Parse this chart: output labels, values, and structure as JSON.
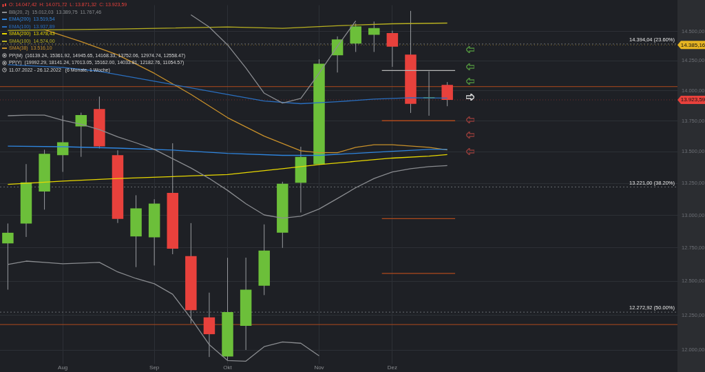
{
  "chart_data": {
    "type": "candlestick",
    "x": [
      "2022-07-11",
      "2022-07-18",
      "2022-07-25",
      "2022-08-01",
      "2022-08-08",
      "2022-08-15",
      "2022-08-22",
      "2022-08-29",
      "2022-09-05",
      "2022-09-12",
      "2022-09-19",
      "2022-09-26",
      "2022-10-03",
      "2022-10-10",
      "2022-10-17",
      "2022-10-24",
      "2022-10-31",
      "2022-11-07",
      "2022-11-14",
      "2022-11-21",
      "2022-11-28",
      "2022-12-05",
      "2022-12-12",
      "2022-12-19",
      "2022-12-26"
    ],
    "ohlc": [
      [
        12785,
        12937,
        12438,
        12866
      ],
      [
        12937,
        13402,
        12834,
        13257
      ],
      [
        13185,
        13517,
        13044,
        13485
      ],
      [
        13473,
        13795,
        13340,
        13577
      ],
      [
        13706,
        13818,
        13460,
        13798
      ],
      [
        13848,
        13951,
        13527,
        13544
      ],
      [
        13473,
        13512,
        12941,
        12973
      ],
      [
        12838,
        13156,
        12606,
        13054
      ],
      [
        12831,
        13125,
        12618,
        13091
      ],
      [
        13175,
        13569,
        12703,
        12745
      ],
      [
        12689,
        12940,
        12190,
        12287
      ],
      [
        12235,
        12416,
        11950,
        12113
      ],
      [
        11953,
        12676,
        11930,
        12274
      ],
      [
        12173,
        12677,
        12000,
        12438
      ],
      [
        12467,
        12930,
        12398,
        12731
      ],
      [
        12866,
        13262,
        12751,
        13246
      ],
      [
        13254,
        13541,
        13022,
        13460
      ],
      [
        13400,
        14264,
        13397,
        14226
      ],
      [
        14297,
        14459,
        14152,
        14433
      ],
      [
        14398,
        14571,
        14326,
        14545
      ],
      [
        14473,
        14587,
        14326,
        14531
      ],
      [
        14488,
        14508,
        14200,
        14371
      ],
      [
        14303,
        14680,
        13816,
        13891
      ],
      [
        13937,
        14162,
        13793,
        13945
      ],
      [
        14047.42,
        14071.72,
        13871.32,
        13923.59
      ]
    ],
    "colors": [
      "#6cbf3a",
      "#6cbf3a",
      "#6cbf3a",
      "#6cbf3a",
      "#6cbf3a",
      "#e8413c",
      "#e8413c",
      "#6cbf3a",
      "#6cbf3a",
      "#e8413c",
      "#e8413c",
      "#e8413c",
      "#6cbf3a",
      "#6cbf3a",
      "#6cbf3a",
      "#6cbf3a",
      "#6cbf3a",
      "#6cbf3a",
      "#6cbf3a",
      "#6cbf3a",
      "#6cbf3a",
      "#e8413c",
      "#e8413c",
      "#6cbf3a",
      "#e8413c"
    ],
    "series": [
      {
        "name": "BB(20, 2)  15.012,03  13.389,75  11.767,46",
        "type": "line",
        "color": "#8a8c90",
        "values": [
          null,
          null,
          null,
          null,
          null,
          null,
          null,
          null,
          null,
          null,
          14646,
          14540,
          14386,
          14190,
          13979,
          13897,
          13935,
          14145,
          14375,
          14592,
          null,
          null,
          null,
          null,
          null
        ]
      },
      {
        "type": "line",
        "color": "#8a8c90",
        "values": [
          13793,
          13798,
          13798,
          13755,
          13723,
          13680,
          13621,
          13573,
          13520,
          13445,
          13371,
          13288,
          13194,
          13090,
          13003,
          12978,
          12993,
          13049,
          13131,
          13215,
          13288,
          13340,
          13366,
          13382,
          13390
        ]
      },
      {
        "type": "line",
        "color": "#8a8c90",
        "values": [
          12626,
          12651,
          12641,
          12631,
          12636,
          12641,
          12570,
          12521,
          12482,
          12404,
          12228,
          12038,
          11925,
          11920,
          12024,
          12057,
          12048,
          11958,
          null,
          null,
          null,
          null,
          null,
          null,
          null
        ]
      },
      {
        "name": "EMA(200)  13.519,54",
        "type": "line",
        "color": "#2f86e0",
        "x": [
          "2022-07-11",
          "2022-08-01",
          "2022-08-22",
          "2022-09-12",
          "2022-10-03",
          "2022-10-24",
          "2022-11-07",
          "2022-11-21",
          "2022-12-05",
          "2022-12-19",
          "2022-12-26"
        ],
        "values": [
          13546,
          13541,
          13530,
          13514,
          13488,
          13472,
          13472,
          13488,
          13504,
          13520,
          13520
        ]
      },
      {
        "name": "EMA(100)  13.937,89",
        "type": "line",
        "color": "#2a6fc0",
        "x": [
          "2022-07-11",
          "2022-08-01",
          "2022-08-15",
          "2022-09-12",
          "2022-10-03",
          "2022-10-17",
          "2022-10-31",
          "2022-11-14",
          "2022-11-28",
          "2022-12-12",
          "2022-12-26"
        ],
        "values": [
          14218,
          14195,
          14162,
          14051,
          13968,
          13914,
          13892,
          13908,
          13930,
          13941,
          13938
        ]
      },
      {
        "name": "SMA(200)  13.478,43",
        "type": "line",
        "color": "#e8d800",
        "x": [
          "2022-07-11",
          "2022-08-01",
          "2022-08-22",
          "2022-09-12",
          "2022-10-03",
          "2022-10-24",
          "2022-11-07",
          "2022-11-21",
          "2022-12-05",
          "2022-12-19",
          "2022-12-26"
        ],
        "values": [
          13241,
          13267,
          13288,
          13303,
          13319,
          13366,
          13398,
          13424,
          13450,
          13466,
          13478
        ]
      },
      {
        "name": "SMA(100)  14.574,00",
        "type": "line",
        "color": "#b8b020",
        "x": [
          "2022-07-11",
          "2022-08-22",
          "2022-10-03",
          "2022-10-24",
          "2022-11-14",
          "2022-12-05",
          "2022-12-26"
        ],
        "values": [
          14511,
          14523,
          14540,
          14528,
          14551,
          14568,
          14574
        ]
      },
      {
        "name": "SMA(38)  13.516,10",
        "type": "line",
        "color": "#c8902a",
        "x": [
          "2022-07-25",
          "2022-08-08",
          "2022-08-22",
          "2022-09-05",
          "2022-09-19",
          "2022-10-03",
          "2022-10-17",
          "2022-10-31",
          "2022-11-07",
          "2022-11-14",
          "2022-11-21",
          "2022-11-28",
          "2022-12-05",
          "2022-12-19",
          "2022-12-26"
        ],
        "values": [
          14517,
          14415,
          14301,
          14145,
          13969,
          13777,
          13627,
          13509,
          13493,
          13493,
          13536,
          13557,
          13557,
          13536,
          13516
        ]
      },
      {
        "type": "line",
        "color": "#b8b8b8",
        "x": [
          "2022-12-01",
          "2022-12-29"
        ],
        "values": [
          14168.33,
          14168.33
        ]
      },
      {
        "type": "line",
        "color": "#b04a1c",
        "x": [
          "2022-12-01",
          "2022-12-29"
        ],
        "values": [
          13752.06,
          13752.06
        ]
      },
      {
        "type": "line",
        "color": "#b04a1c",
        "x": [
          "2022-12-01",
          "2022-12-29"
        ],
        "values": [
          12974.74,
          12974.74
        ]
      },
      {
        "type": "line",
        "color": "#b04a1c",
        "x": [
          "2022-12-01",
          "2022-12-29"
        ],
        "values": [
          12558.47,
          12558.47
        ]
      }
    ],
    "ref_lines": [
      {
        "axis": "y",
        "value": 14033.81,
        "label": null,
        "color": "#b04a1c",
        "line_style": "solid"
      },
      {
        "axis": "y",
        "value": 12182.76,
        "label": null,
        "color": "#b04a1c",
        "line_style": "solid"
      },
      {
        "axis": "y",
        "value": 14394.04,
        "label": "14.394,04 (23.60%)",
        "color": "#6a6d72",
        "line_style": "dotted"
      },
      {
        "axis": "y",
        "value": 13221,
        "label": "13.221,00 (38.20%)",
        "color": "#6a6d72",
        "line_style": "dotted"
      },
      {
        "axis": "y",
        "value": 12272.92,
        "label": "12.272,92 (50.00%)",
        "color": "#6a6d72",
        "line_style": "dotted"
      },
      {
        "axis": "y",
        "value": 14385.16,
        "label": "14.385,16",
        "color": "#e6b422"
      },
      {
        "axis": "y",
        "value": 13923.59,
        "label": "13.923,59",
        "color": "#e8413c"
      }
    ],
    "annotations": [
      "O: 14.047,42  H: 14.071,72  L: 13.871,32  C: 13.923,59",
      "PP(M)  (16139.24, 15361.92, 14945.65, 14168.33, 13752.06, 12974.74, 12558.47)",
      "PP(Y)  (19992.29, 18141.24, 17013.05, 15162.00, 14033.81, 12182.76, 11054.57)",
      "11.07.2022 - 26.12.2022   (6 Monate, 1 Woche)"
    ],
    "xlim": [
      "2022-07-08",
      "2023-03-24"
    ],
    "xticks": [
      {
        "value": "2022-08-01",
        "label": "Aug"
      },
      {
        "value": "2022-09-05",
        "label": "Sep"
      },
      {
        "value": "2022-10-03",
        "label": "Okt"
      },
      {
        "value": "2022-11-07",
        "label": "Nov"
      },
      {
        "value": "2022-12-05",
        "label": "Dez"
      }
    ],
    "ylim": [
      11910,
      14730
    ],
    "yticks": [
      {
        "value": 12000,
        "label": "12.000,00"
      },
      {
        "value": 12250,
        "label": "12.250,00"
      },
      {
        "value": 12500,
        "label": "12.500,00"
      },
      {
        "value": 12750,
        "label": "12.750,00"
      },
      {
        "value": 13000,
        "label": "13.000,00"
      },
      {
        "value": 13250,
        "label": "13.250,00"
      },
      {
        "value": 13500,
        "label": "13.500,00"
      },
      {
        "value": 13750,
        "label": "13.750,00"
      },
      {
        "value": 14000,
        "label": "14.000,00"
      },
      {
        "value": 14250,
        "label": "14.250,00"
      },
      {
        "value": 14500,
        "label": "14.500,00"
      }
    ],
    "log": "y",
    "grid": true,
    "legend": "top left",
    "marker": "none"
  }
}
